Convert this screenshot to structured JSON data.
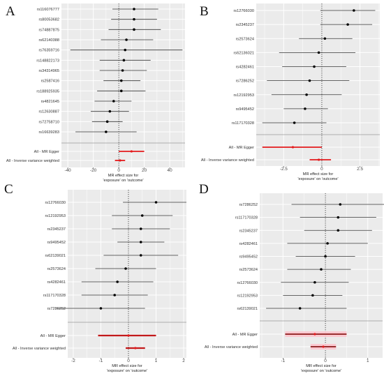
{
  "colors": {
    "panel_bg": "#ebebeb",
    "grid": "#ffffff",
    "point": "#000000",
    "snp_line": "#333333",
    "summary_line": "#e41a1c",
    "summary_line_dark": "#8b1a1a",
    "summary_fill_d": "#ffc0cb"
  },
  "chart_data": [
    {
      "type": "forest",
      "panel": "A",
      "xlabel": "MR effect size for\n'exposure' on 'outcome'",
      "xlim": [
        -45,
        52
      ],
      "xticks": [
        -40,
        -20,
        0,
        20,
        40
      ],
      "snps": [
        {
          "label": "rs116076777",
          "est": 12,
          "lo": -5,
          "hi": 31
        },
        {
          "label": "rs80053682",
          "est": 12,
          "lo": -6,
          "hi": 30
        },
        {
          "label": "rs74887875",
          "est": 12,
          "lo": -8,
          "hi": 33
        },
        {
          "label": "rs62140388",
          "est": 6,
          "lo": -14,
          "hi": 27
        },
        {
          "label": "rs76359716",
          "est": 5,
          "lo": -38,
          "hi": 50
        },
        {
          "label": "rs148822173",
          "est": 4,
          "lo": -15,
          "hi": 25
        },
        {
          "label": "rs34314965",
          "est": 3,
          "lo": -15,
          "hi": 22
        },
        {
          "label": "rs2587416",
          "est": 2,
          "lo": -12,
          "hi": 17
        },
        {
          "label": "rs188925935",
          "est": 2,
          "lo": -17,
          "hi": 21
        },
        {
          "label": "rs4821645",
          "est": -4,
          "lo": -19,
          "hi": 10
        },
        {
          "label": "rs12630887",
          "est": -7,
          "lo": -22,
          "hi": 8
        },
        {
          "label": "rs72758710",
          "est": -9,
          "lo": -21,
          "hi": 3
        },
        {
          "label": "rs16639283",
          "est": -10,
          "lo": -34,
          "hi": 14
        }
      ],
      "summaries": [
        {
          "label": "All - MR Egger",
          "est": 10,
          "lo": 0,
          "hi": 20
        },
        {
          "label": "All - Inverse variance weighted",
          "est": 1,
          "lo": -3,
          "hi": 5
        }
      ]
    },
    {
      "type": "forest",
      "panel": "B",
      "xlabel": "MR effect size for\n'exposure' on 'outcome'",
      "xlim": [
        -4.3,
        3.8
      ],
      "xticks": [
        -2.5,
        0,
        2.5
      ],
      "snps": [
        {
          "label": "rs12766030",
          "est": 2.1,
          "lo": -0.1,
          "hi": 3.5
        },
        {
          "label": "rs2345237",
          "est": 1.7,
          "lo": -0.1,
          "hi": 3.3
        },
        {
          "label": "rs2573624",
          "est": 0.2,
          "lo": -1.5,
          "hi": 2.0
        },
        {
          "label": "rs62136021",
          "est": -0.2,
          "lo": -2.8,
          "hi": 2.2
        },
        {
          "label": "rs4282461",
          "est": -0.5,
          "lo": -2.6,
          "hi": 1.6
        },
        {
          "label": "rs7286252",
          "est": -0.8,
          "lo": -3.6,
          "hi": 1.8
        },
        {
          "label": "rs12192953",
          "est": -1.0,
          "lo": -3.3,
          "hi": 1.3
        },
        {
          "label": "rs9495452",
          "est": -1.1,
          "lo": -2.5,
          "hi": 0.4
        },
        {
          "label": "rs117170328",
          "est": -1.8,
          "lo": -3.9,
          "hi": 0.3
        }
      ],
      "summaries": [
        {
          "label": "All - MR Egger",
          "est": -1.9,
          "lo": -3.9,
          "hi": 0.0
        },
        {
          "label": "All - Inverse variance weighted",
          "est": -0.2,
          "lo": -0.8,
          "hi": 0.6
        }
      ]
    },
    {
      "type": "forest",
      "panel": "C",
      "xlabel": "MR effect size for\n'exposure' on 'outcome'",
      "xlim": [
        -2.2,
        2.1
      ],
      "xticks": [
        -2,
        -1,
        0,
        1,
        2
      ],
      "snps": [
        {
          "label": "rs12766030",
          "est": 1.0,
          "lo": -0.2,
          "hi": 2.1
        },
        {
          "label": "rs12192953",
          "est": 0.5,
          "lo": -0.6,
          "hi": 1.6
        },
        {
          "label": "rs2345237",
          "est": 0.45,
          "lo": -0.6,
          "hi": 1.5
        },
        {
          "label": "rs9495452",
          "est": 0.45,
          "lo": -0.4,
          "hi": 1.3
        },
        {
          "label": "rs62139021",
          "est": 0.45,
          "lo": -0.9,
          "hi": 1.8
        },
        {
          "label": "rs2573624",
          "est": -0.1,
          "lo": -1.2,
          "hi": 1.0
        },
        {
          "label": "rs4282461",
          "est": -0.4,
          "lo": -1.7,
          "hi": 0.9
        },
        {
          "label": "rs117170328",
          "est": -0.5,
          "lo": -1.7,
          "hi": 0.7
        },
        {
          "label": "rs7286252",
          "est": -1.0,
          "lo": -2.6,
          "hi": 0.6
        }
      ],
      "summaries": [
        {
          "label": "All - MR Egger",
          "est": 0.0,
          "lo": -1.1,
          "hi": 1.0
        },
        {
          "label": "All - Inverse variance weighted",
          "est": 0.25,
          "lo": -0.1,
          "hi": 0.6
        }
      ]
    },
    {
      "type": "forest",
      "panel": "D",
      "xlabel": "MR effect size for\n'exposure' on 'outcome'",
      "xlim": [
        -1.55,
        1.35
      ],
      "xticks": [
        -1,
        0,
        1
      ],
      "snps": [
        {
          "label": "rs7286252",
          "est": 0.35,
          "lo": -0.8,
          "hi": 1.5
        },
        {
          "label": "rs117170328",
          "est": 0.3,
          "lo": -0.6,
          "hi": 1.2
        },
        {
          "label": "rs2345237",
          "est": 0.3,
          "lo": -0.5,
          "hi": 1.1
        },
        {
          "label": "rs4282461",
          "est": 0.05,
          "lo": -0.9,
          "hi": 1.0
        },
        {
          "label": "rs9495452",
          "est": 0.0,
          "lo": -0.7,
          "hi": 0.7
        },
        {
          "label": "rs2573624",
          "est": -0.1,
          "lo": -0.9,
          "hi": 0.6
        },
        {
          "label": "rs12766030",
          "est": -0.25,
          "lo": -1.05,
          "hi": 0.55
        },
        {
          "label": "rs12192953",
          "est": -0.3,
          "lo": -1.0,
          "hi": 0.4
        },
        {
          "label": "rs62139021",
          "est": -0.6,
          "lo": -1.4,
          "hi": 0.5
        }
      ],
      "summaries": [
        {
          "label": "All - MR Egger",
          "est": -0.25,
          "lo": -0.95,
          "hi": 0.5
        },
        {
          "label": "All - Inverse variance weighted",
          "est": -0.05,
          "lo": -0.35,
          "hi": 0.25
        }
      ]
    }
  ]
}
